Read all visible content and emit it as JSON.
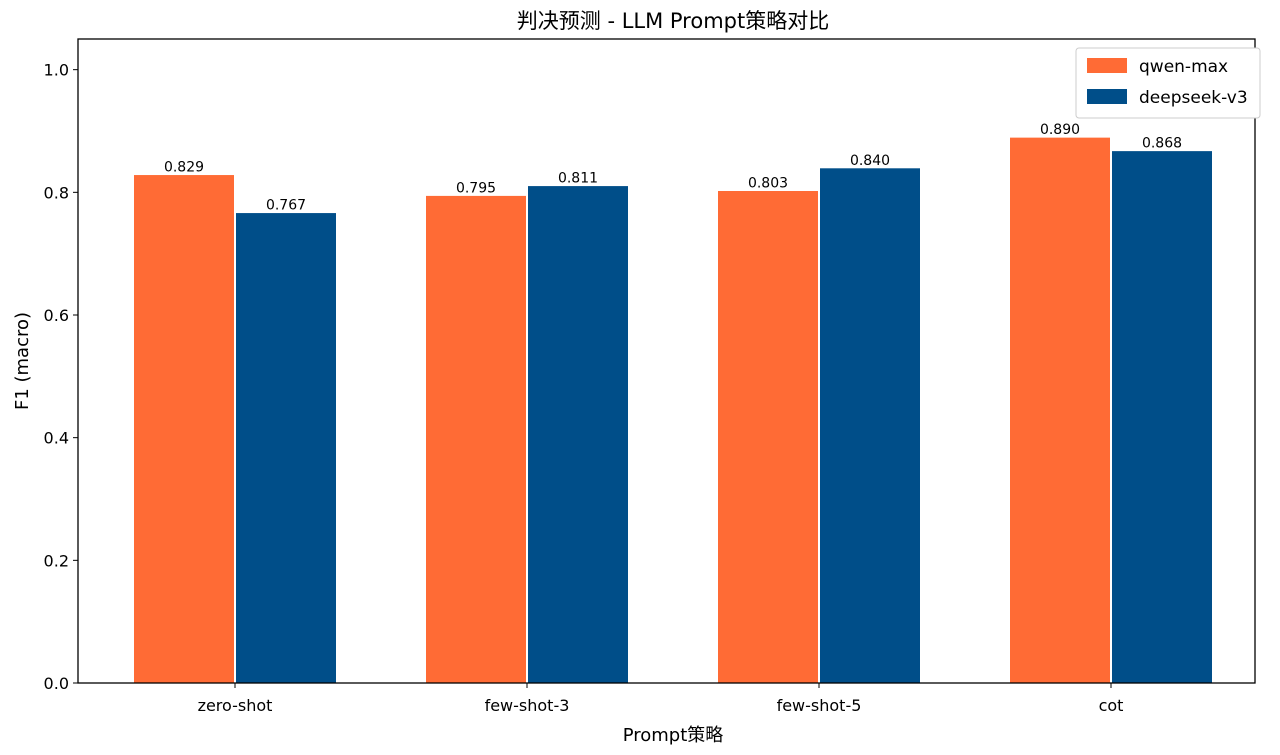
{
  "chart_data": {
    "type": "bar",
    "title": "判决预测 - LLM Prompt策略对比",
    "xlabel": "Prompt策略",
    "ylabel": "F1 (macro)",
    "categories": [
      "zero-shot",
      "few-shot-3",
      "few-shot-5",
      "cot"
    ],
    "series": [
      {
        "name": "qwen-max",
        "color": "#ff6b35",
        "values": [
          0.829,
          0.795,
          0.803,
          0.89
        ],
        "labels": [
          "0.829",
          "0.795",
          "0.803",
          "0.890"
        ]
      },
      {
        "name": "deepseek-v3",
        "color": "#004e89",
        "values": [
          0.767,
          0.811,
          0.84,
          0.868
        ],
        "labels": [
          "0.767",
          "0.811",
          "0.840",
          "0.868"
        ]
      }
    ],
    "ylim": [
      0,
      1.05
    ],
    "yticks": [
      0.0,
      0.2,
      0.4,
      0.6,
      0.8,
      1.0
    ],
    "ytick_labels": [
      "0.0",
      "0.2",
      "0.4",
      "0.6",
      "0.8",
      "1.0"
    ],
    "grid": false,
    "legend_position": "top-right"
  }
}
